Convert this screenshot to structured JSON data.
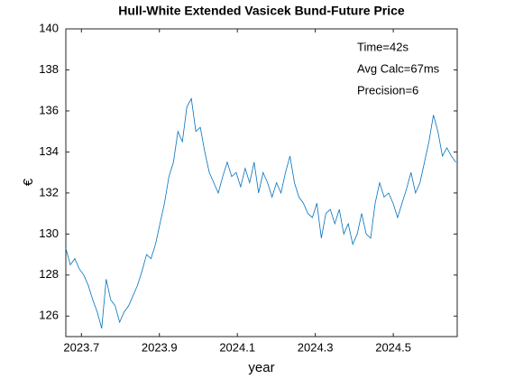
{
  "chart_data": {
    "type": "line",
    "title": "Hull-White Extended Vasicek Bund-Future Price",
    "x_label": "year",
    "y_label": "€",
    "annotations": [
      "Time=42s",
      "Avg Calc=67ms",
      "Precision=6"
    ],
    "color": "#0072bd",
    "xlim": [
      2023.66,
      2024.664
    ],
    "ylim": [
      125,
      140
    ],
    "xticks": [
      2023.7,
      2023.9,
      2024.1,
      2024.3,
      2024.5
    ],
    "yticks": [
      126,
      128,
      130,
      132,
      134,
      136,
      138,
      140
    ],
    "grid": false,
    "x": [
      2023.66,
      2023.6715,
      2023.683,
      2023.6945,
      2023.706,
      2023.7175,
      2023.729,
      2023.7405,
      2023.752,
      2023.7635,
      2023.775,
      2023.7865,
      2023.798,
      2023.8095,
      2023.821,
      2023.8325,
      2023.844,
      2023.8555,
      2023.867,
      2023.8785,
      2023.89,
      2023.9015,
      2023.913,
      2023.9245,
      2023.936,
      2023.9475,
      2023.959,
      2023.9705,
      2023.982,
      2023.9935,
      2024.005,
      2024.0165,
      2024.028,
      2024.0395,
      2024.051,
      2024.0625,
      2024.074,
      2024.0855,
      2024.097,
      2024.1085,
      2024.12,
      2024.1315,
      2024.143,
      2024.1545,
      2024.166,
      2024.1775,
      2024.189,
      2024.2005,
      2024.212,
      2024.2235,
      2024.235,
      2024.2465,
      2024.258,
      2024.2695,
      2024.281,
      2024.2925,
      2024.304,
      2024.3155,
      2024.327,
      2024.3385,
      2024.35,
      2024.3615,
      2024.373,
      2024.3845,
      2024.396,
      2024.4075,
      2024.419,
      2024.4305,
      2024.442,
      2024.4535,
      2024.465,
      2024.4765,
      2024.488,
      2024.4995,
      2024.511,
      2024.5225,
      2024.534,
      2024.5455,
      2024.557,
      2024.5685,
      2024.58,
      2024.5915,
      2024.603,
      2024.6145,
      2024.626,
      2024.6375,
      2024.649,
      2024.6605
    ],
    "values": [
      129.3,
      128.5,
      128.8,
      128.3,
      128.0,
      127.5,
      126.8,
      126.2,
      125.4,
      127.8,
      126.8,
      126.5,
      125.7,
      126.2,
      126.5,
      127.0,
      127.5,
      128.2,
      129.0,
      128.8,
      129.5,
      130.5,
      131.5,
      132.8,
      133.5,
      135.0,
      134.5,
      136.2,
      136.6,
      135.0,
      135.2,
      134.0,
      133.0,
      132.5,
      132.0,
      132.8,
      133.5,
      132.8,
      133.0,
      132.3,
      133.2,
      132.5,
      133.5,
      132.0,
      133.0,
      132.5,
      131.8,
      132.5,
      132.0,
      133.0,
      133.8,
      132.5,
      131.8,
      131.5,
      131.0,
      130.8,
      131.5,
      129.8,
      131.0,
      131.2,
      130.5,
      131.2,
      130.0,
      130.5,
      129.5,
      130.0,
      131.0,
      130.0,
      129.8,
      131.5,
      132.5,
      131.8,
      132.0,
      131.5,
      130.8,
      131.5,
      132.2,
      133.0,
      132.0,
      132.5,
      133.5,
      134.5,
      135.8,
      135.0,
      133.8,
      134.2,
      133.8,
      133.5
    ]
  }
}
